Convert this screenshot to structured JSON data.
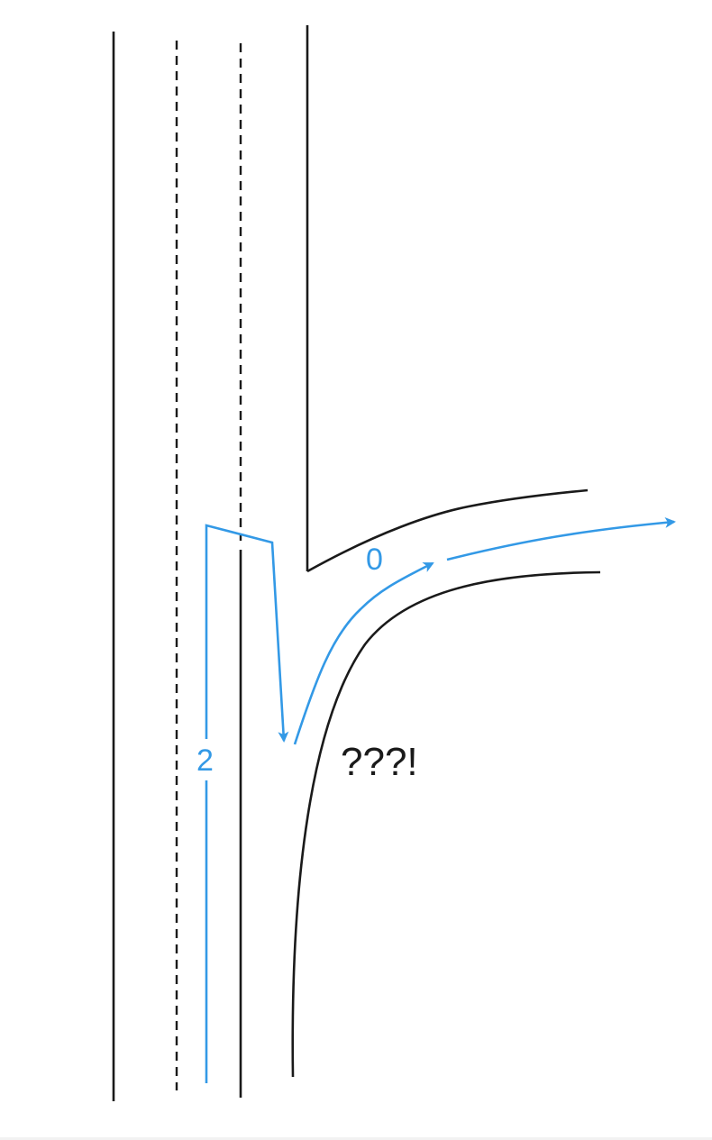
{
  "colors": {
    "road": "#1a1a1a",
    "route": "#3399e6",
    "background": "#ffffff"
  },
  "routes": [
    {
      "id": "route-0",
      "label": "0"
    },
    {
      "id": "route-2",
      "label": "2"
    }
  ],
  "annotation": {
    "text": "???!"
  }
}
